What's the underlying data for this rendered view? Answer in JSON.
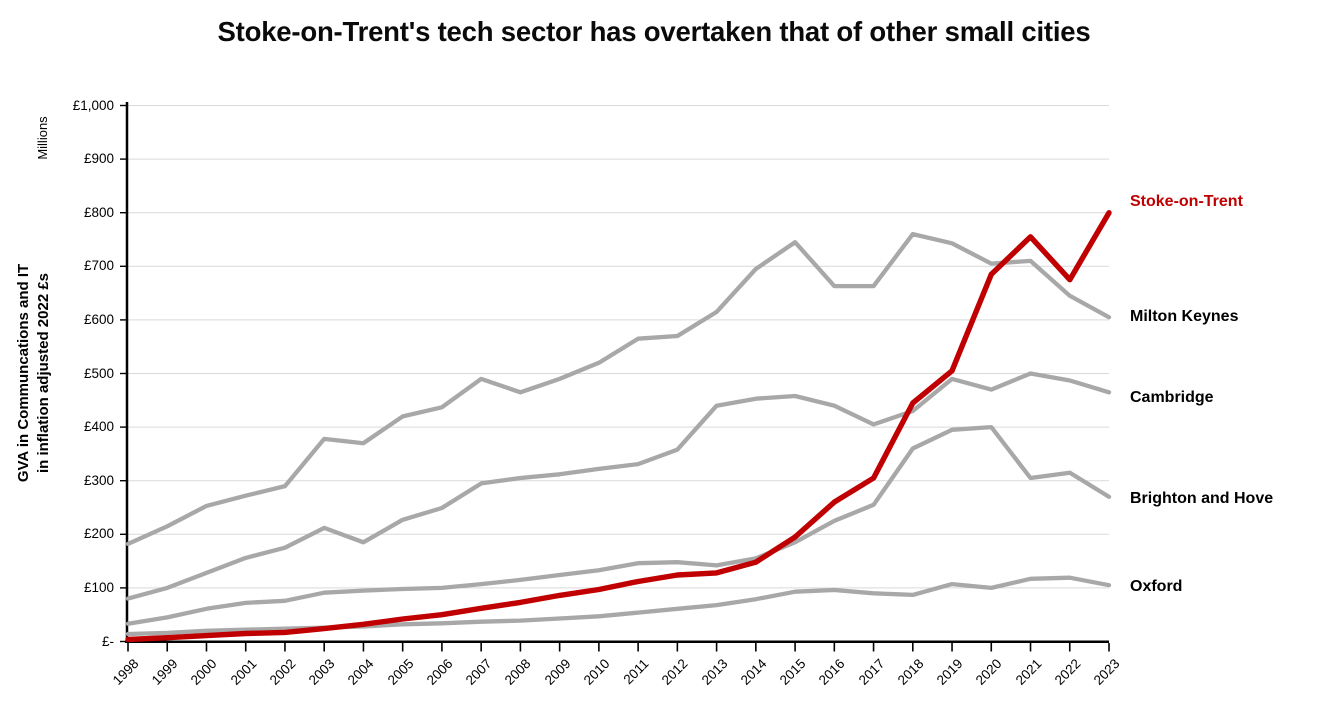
{
  "title": "Stoke-on-Trent's tech sector has overtaken that of other small cities",
  "y_axis": {
    "unit_label": "Millions",
    "title_line1": "GVA in Communcations and IT",
    "title_line2": "in inflation adjusted 2022 £s",
    "tick_labels_top_to_bottom": [
      "£1,000",
      "£900",
      "£800",
      "£700",
      "£600",
      "£500",
      "£400",
      "£300",
      "£200",
      "£100",
      "£-"
    ]
  },
  "chart_data": {
    "type": "line",
    "x": [
      1998,
      1999,
      2000,
      2001,
      2002,
      2003,
      2004,
      2005,
      2006,
      2007,
      2008,
      2009,
      2010,
      2011,
      2012,
      2013,
      2014,
      2015,
      2016,
      2017,
      2018,
      2019,
      2020,
      2021,
      2022,
      2023
    ],
    "series": [
      {
        "name": "Stoke-on-Trent",
        "color": "#C00000",
        "emphasis": true,
        "values": [
          4,
          7,
          11,
          15,
          17,
          24,
          32,
          42,
          50,
          62,
          73,
          86,
          97,
          112,
          124,
          128,
          148,
          195,
          260,
          305,
          445,
          505,
          685,
          755,
          675,
          800
        ]
      },
      {
        "name": "Milton Keynes",
        "color": "#A8A8A8",
        "emphasis": false,
        "values": [
          182,
          215,
          253,
          272,
          290,
          378,
          370,
          420,
          437,
          490,
          465,
          490,
          520,
          565,
          570,
          615,
          695,
          745,
          663,
          663,
          760,
          743,
          705,
          710,
          645,
          605
        ]
      },
      {
        "name": "Cambridge",
        "color": "#A8A8A8",
        "emphasis": false,
        "values": [
          80,
          100,
          128,
          156,
          175,
          212,
          185,
          227,
          249,
          295,
          305,
          312,
          322,
          331,
          358,
          440,
          453,
          458,
          440,
          405,
          430,
          490,
          470,
          500,
          487,
          465
        ]
      },
      {
        "name": "Brighton and Hove",
        "color": "#A8A8A8",
        "emphasis": false,
        "values": [
          33,
          45,
          61,
          72,
          76,
          91,
          95,
          98,
          100,
          107,
          115,
          124,
          133,
          146,
          148,
          142,
          155,
          185,
          225,
          255,
          360,
          395,
          400,
          305,
          315,
          270
        ]
      },
      {
        "name": "Oxford",
        "color": "#A8A8A8",
        "emphasis": false,
        "values": [
          14,
          16,
          20,
          22,
          24,
          26,
          28,
          32,
          34,
          37,
          39,
          43,
          47,
          54,
          61,
          68,
          79,
          93,
          96,
          90,
          87,
          107,
          100,
          117,
          119,
          105
        ]
      }
    ],
    "ylim": [
      0,
      1000
    ],
    "ytick_step": 100,
    "grid": "horizontal",
    "gridline_color": "#D9D9D9",
    "axis_color": "#000000",
    "legend_position": "right-end-labels"
  }
}
